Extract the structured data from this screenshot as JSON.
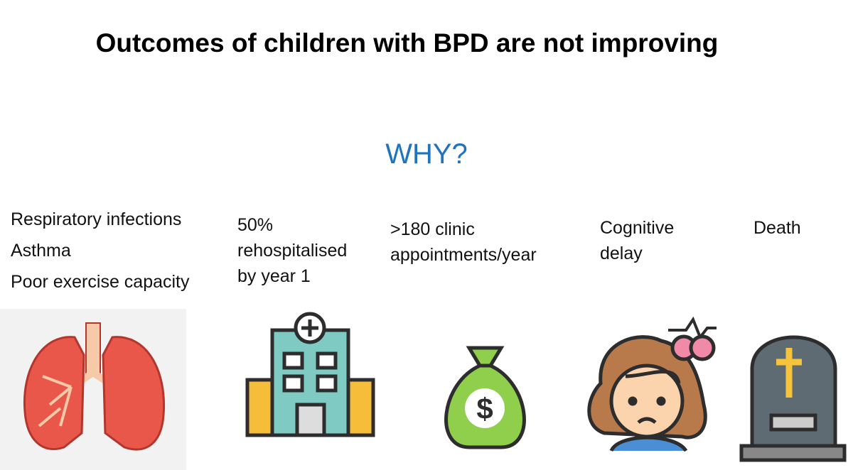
{
  "title": "Outcomes of children with BPD are not improving",
  "subtitle": "WHY?",
  "outcomes": [
    {
      "lines": [
        "Respiratory infections",
        "Asthma",
        "Poor exercise capacity"
      ]
    },
    {
      "lines": [
        "50%",
        "rehospitalised",
        "by year 1"
      ]
    },
    {
      "lines": [
        ">180 clinic",
        "appointments/year"
      ]
    },
    {
      "lines": [
        "Cognitive",
        "delay"
      ]
    },
    {
      "lines": [
        "Death"
      ]
    }
  ]
}
